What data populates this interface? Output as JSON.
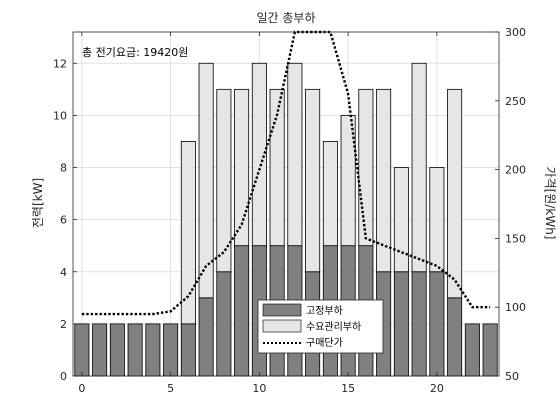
{
  "chart_data": {
    "type": "bar",
    "title": "일간 총부하",
    "annotation": "총 전기요금:  19420원",
    "ylabel_left": "전력[kW]",
    "ylabel_right": "가격[원/kWh]",
    "x": [
      0,
      1,
      2,
      3,
      4,
      5,
      6,
      7,
      8,
      9,
      10,
      11,
      12,
      13,
      14,
      15,
      16,
      17,
      18,
      19,
      20,
      21,
      22,
      23
    ],
    "xlim": [
      -0.5,
      23.5
    ],
    "xticks": [
      0,
      5,
      10,
      15,
      20
    ],
    "ylim_left": [
      0,
      13.2
    ],
    "yticks_left": [
      0,
      2,
      4,
      6,
      8,
      10,
      12
    ],
    "ylim_right": [
      50,
      300
    ],
    "yticks_right": [
      50,
      100,
      150,
      200,
      250,
      300
    ],
    "grid": true,
    "legend_position": "bottom-center",
    "colors": {
      "fixed": "#808080",
      "flexible": "#e6e6e6",
      "price": "#000000"
    },
    "series": [
      {
        "name": "고정부하",
        "axis": "left",
        "kind": "bar-stack",
        "values": [
          2,
          2,
          2,
          2,
          2,
          2,
          2,
          3,
          4,
          5,
          5,
          5,
          5,
          4,
          5,
          5,
          5,
          4,
          4,
          4,
          4,
          3,
          2,
          2
        ]
      },
      {
        "name": "수요관리부하",
        "axis": "left",
        "kind": "bar-stack",
        "values": [
          0,
          0,
          0,
          0,
          0,
          0,
          7,
          9,
          7,
          6,
          7,
          6,
          7,
          7,
          4,
          5,
          6,
          7,
          4,
          8,
          4,
          8,
          0,
          0
        ]
      },
      {
        "name": "구매단가",
        "axis": "right",
        "kind": "line",
        "values": [
          95,
          95,
          95,
          95,
          95,
          97,
          108,
          130,
          140,
          160,
          200,
          240,
          300,
          300,
          300,
          255,
          150,
          145,
          140,
          135,
          130,
          120,
          100,
          100
        ]
      }
    ]
  }
}
